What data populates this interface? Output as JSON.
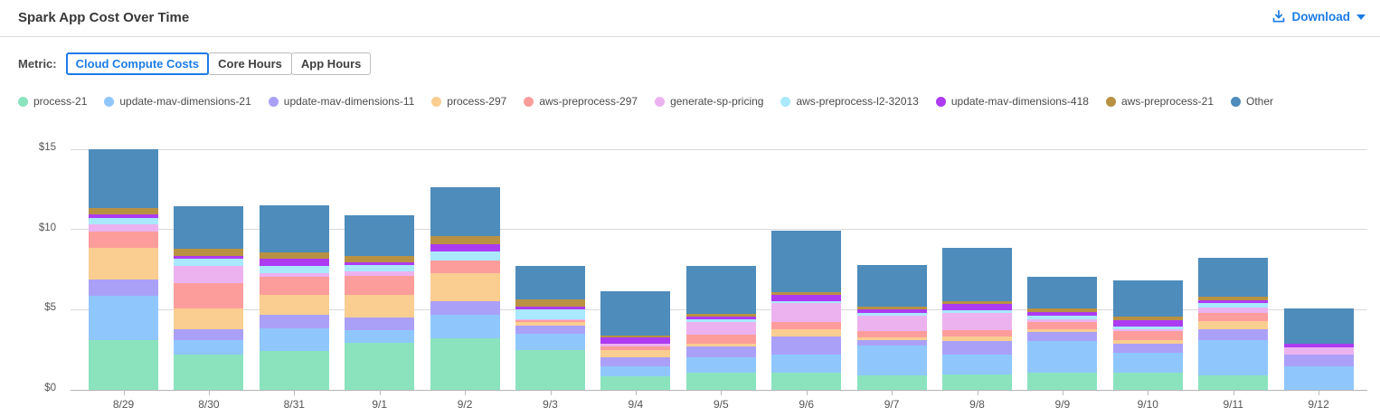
{
  "header": {
    "title": "Spark App Cost Over Time",
    "download_label": "Download"
  },
  "metric": {
    "label": "Metric:",
    "tabs": [
      {
        "label": "Cloud Compute Costs",
        "selected": true
      },
      {
        "label": "Core Hours",
        "selected": false
      },
      {
        "label": "App Hours",
        "selected": false
      }
    ]
  },
  "colors": {
    "accent_blue": "#1c7ce6",
    "grid": "#d9d9d9",
    "axis_text": "#555555"
  },
  "chart_data": {
    "type": "bar",
    "stacked": true,
    "title": "Spark App Cost Over Time",
    "xlabel": "",
    "ylabel": "",
    "ylim": [
      0,
      15
    ],
    "y_ticks": [
      {
        "label": "$0",
        "value": 0
      },
      {
        "label": "$5",
        "value": 5
      },
      {
        "label": "$10",
        "value": 10
      },
      {
        "label": "$15",
        "value": 15
      }
    ],
    "grid": "horizontal",
    "legend_position": "top",
    "categories": [
      "8/29",
      "8/30",
      "8/31",
      "9/1",
      "9/2",
      "9/3",
      "9/4",
      "9/5",
      "9/6",
      "9/7",
      "9/8",
      "9/9",
      "9/10",
      "9/11",
      "9/12"
    ],
    "series": [
      {
        "name": "process-21",
        "color": "#8BE3BE",
        "values": [
          3.1,
          2.2,
          2.4,
          2.95,
          3.2,
          2.45,
          0.85,
          1.05,
          1.05,
          0.9,
          0.95,
          1.05,
          1.05,
          0.9,
          0.0
        ]
      },
      {
        "name": "update-mav-dimensions-21",
        "color": "#8FC7FD",
        "values": [
          2.75,
          0.9,
          1.45,
          0.75,
          1.5,
          1.05,
          0.6,
          0.95,
          1.15,
          1.85,
          1.25,
          2.0,
          1.25,
          2.2,
          1.45
        ]
      },
      {
        "name": "update-mav-dimensions-11",
        "color": "#ABA0F8",
        "values": [
          1.0,
          0.65,
          0.8,
          0.8,
          0.85,
          0.5,
          0.6,
          0.7,
          1.15,
          0.35,
          0.85,
          0.55,
          0.55,
          0.7,
          0.75
        ]
      },
      {
        "name": "process-297",
        "color": "#FACD90",
        "values": [
          2.0,
          1.35,
          1.25,
          1.4,
          1.7,
          0.2,
          0.45,
          0.2,
          0.45,
          0.15,
          0.25,
          0.2,
          0.25,
          0.5,
          0.0
        ]
      },
      {
        "name": "aws-preprocess-297",
        "color": "#FC9D9B",
        "values": [
          1.0,
          1.55,
          1.15,
          1.2,
          0.8,
          0.15,
          0.2,
          0.55,
          0.45,
          0.4,
          0.4,
          0.4,
          0.55,
          0.5,
          0.0
        ]
      },
      {
        "name": "generate-sp-pricing",
        "color": "#ECB2EF",
        "values": [
          0.47,
          1.05,
          0.2,
          0.3,
          0.0,
          0.05,
          0.15,
          0.75,
          1.15,
          1.0,
          1.1,
          0.2,
          0.1,
          0.35,
          0.45
        ]
      },
      {
        "name": "aws-preprocess-l2-32013",
        "color": "#A9E8FD",
        "values": [
          0.41,
          0.45,
          0.45,
          0.4,
          0.55,
          0.6,
          0.05,
          0.2,
          0.15,
          0.15,
          0.15,
          0.25,
          0.2,
          0.25,
          0.0
        ]
      },
      {
        "name": "update-mav-dimensions-418",
        "color": "#AC3BF2",
        "values": [
          0.2,
          0.2,
          0.45,
          0.15,
          0.5,
          0.2,
          0.35,
          0.15,
          0.35,
          0.2,
          0.4,
          0.2,
          0.4,
          0.2,
          0.25
        ]
      },
      {
        "name": "aws-preprocess-21",
        "color": "#B99143",
        "values": [
          0.43,
          0.45,
          0.4,
          0.4,
          0.5,
          0.45,
          0.15,
          0.2,
          0.2,
          0.2,
          0.2,
          0.25,
          0.2,
          0.2,
          0.0
        ]
      },
      {
        "name": "Other",
        "color": "#4D8CBB",
        "values": [
          3.65,
          2.65,
          2.95,
          2.55,
          3.05,
          2.1,
          2.75,
          3.0,
          3.85,
          2.6,
          3.3,
          1.95,
          2.3,
          2.45,
          2.15
        ]
      }
    ]
  }
}
